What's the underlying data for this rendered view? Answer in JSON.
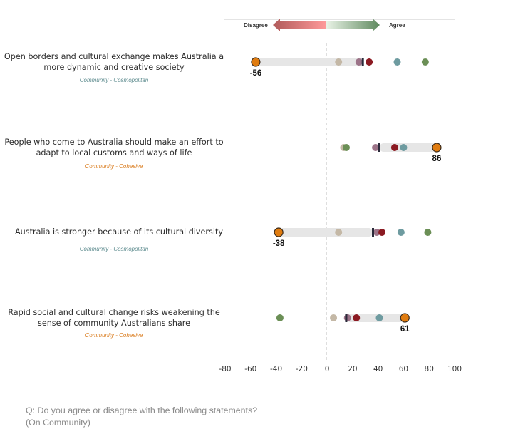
{
  "legend": {
    "left_label": "Disagree",
    "right_label": "Agree",
    "left_color": "#b85c5c",
    "right_color": "#5f8a5f"
  },
  "statements": [
    {
      "lines": [
        "Open borders and cultural exchange makes Australia a",
        "more dynamic and creative society"
      ],
      "category": "Community - Cosmopolitan",
      "category_type": "cosmo"
    },
    {
      "lines": [
        "People who come to Australia should make an effort to",
        "adapt to local customs and ways of life"
      ],
      "category": "Community - Cohesive",
      "category_type": "cohes"
    },
    {
      "lines": [
        "Australia is stronger because of its cultural diversity"
      ],
      "category": "Community - Cosmopolitan",
      "category_type": "cosmo"
    },
    {
      "lines": [
        "Rapid social and cultural change risks weakening the",
        "sense of community Australians share"
      ],
      "category": "Community - Cohesive",
      "category_type": "cohes"
    }
  ],
  "footer": {
    "line1": "Q: Do you agree or disagree with the following statements?",
    "line2": "(On Community)"
  },
  "chart_data": {
    "type": "scatter",
    "subtype": "dot-plot",
    "xlim": [
      -80,
      100
    ],
    "x_ticks": [
      "-80",
      "-60",
      "-40",
      "-20",
      "0",
      "20",
      "40",
      "60",
      "80",
      "100"
    ],
    "x_tick_values": [
      -80,
      -60,
      -40,
      -20,
      0,
      20,
      40,
      60,
      80,
      100
    ],
    "zero_line": "dashed",
    "series_colors": {
      "beige": "#c4b8a6",
      "mauve": "#9c7388",
      "red": "#8b1a22",
      "teal": "#6e9ba0",
      "green": "#6b8f56",
      "orange": "#e07c10"
    },
    "rows": [
      {
        "beige": 9,
        "mauve": 25,
        "red": 33,
        "teal": 55,
        "green": 77,
        "orange": -56,
        "marker": 28,
        "highlight_label": "-56"
      },
      {
        "beige": 13,
        "mauve": 38,
        "red": 53,
        "teal": 60,
        "green": 15,
        "orange": 86,
        "marker": 41,
        "highlight_label": "86"
      },
      {
        "beige": 9,
        "mauve": 39,
        "red": 43,
        "teal": 58,
        "green": 79,
        "orange": -38,
        "marker": 36,
        "highlight_label": "-38"
      },
      {
        "beige": 5,
        "mauve": 16,
        "red": 23,
        "teal": 41,
        "green": -37,
        "orange": 61,
        "marker": 15,
        "highlight_label": "61"
      }
    ]
  }
}
